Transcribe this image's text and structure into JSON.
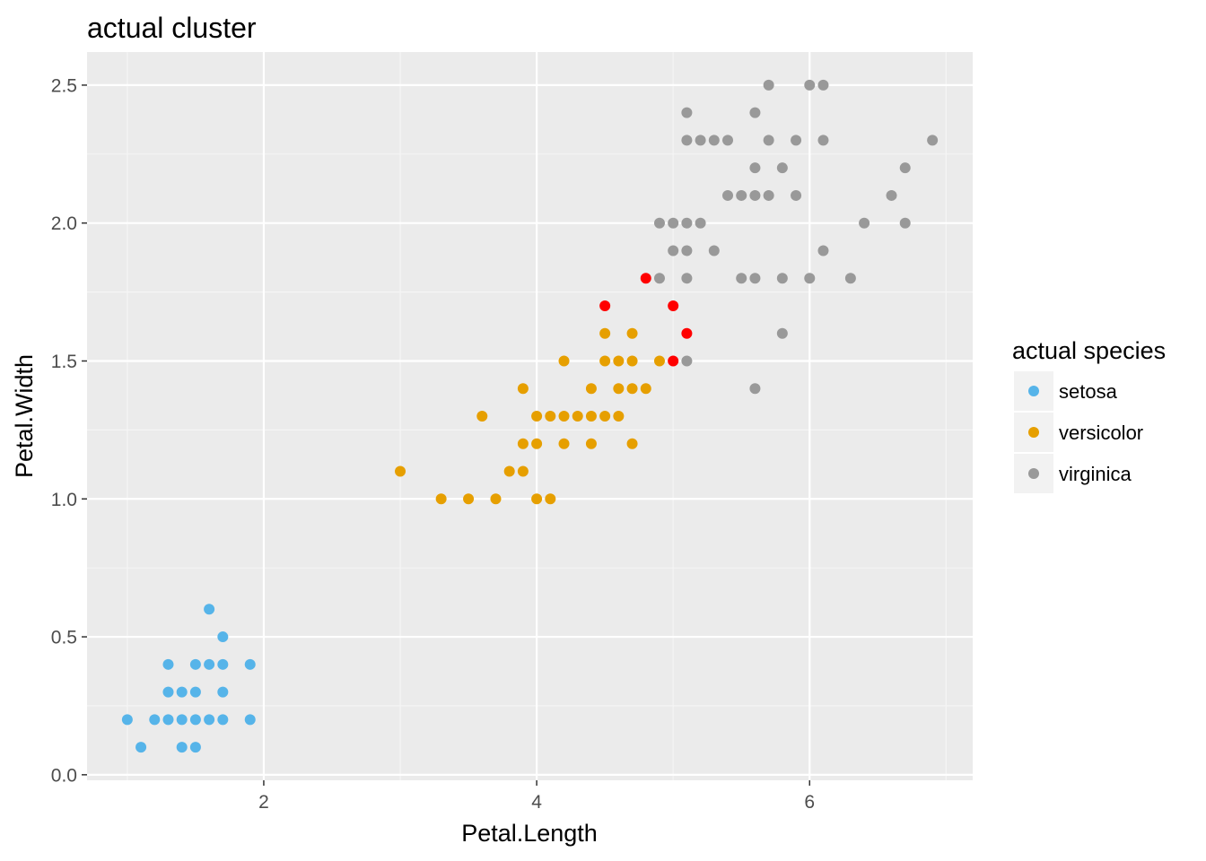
{
  "chart_data": {
    "type": "scatter",
    "title": "actual cluster",
    "xlabel": "Petal.Length",
    "ylabel": "Petal.Width",
    "xlim": [
      0.705,
      7.195
    ],
    "ylim": [
      -0.02,
      2.62
    ],
    "x_ticks": [
      2,
      4,
      6
    ],
    "x_tick_labels": [
      "2",
      "4",
      "6"
    ],
    "y_ticks": [
      0,
      0.5,
      1,
      1.5,
      2,
      2.5
    ],
    "y_tick_labels": [
      "0.0",
      "0.5",
      "1.0",
      "1.5",
      "2.0",
      "2.5"
    ],
    "grid": true,
    "legend": {
      "title": "actual species",
      "placement": "right"
    },
    "series": [
      {
        "name": "setosa",
        "color": "#56B4E9",
        "points": [
          [
            1.0,
            0.2
          ],
          [
            1.1,
            0.1
          ],
          [
            1.2,
            0.2
          ],
          [
            1.3,
            0.2
          ],
          [
            1.3,
            0.3
          ],
          [
            1.3,
            0.4
          ],
          [
            1.4,
            0.1
          ],
          [
            1.4,
            0.2
          ],
          [
            1.4,
            0.3
          ],
          [
            1.5,
            0.1
          ],
          [
            1.5,
            0.2
          ],
          [
            1.5,
            0.3
          ],
          [
            1.5,
            0.4
          ],
          [
            1.6,
            0.2
          ],
          [
            1.6,
            0.4
          ],
          [
            1.6,
            0.6
          ],
          [
            1.7,
            0.2
          ],
          [
            1.7,
            0.3
          ],
          [
            1.7,
            0.4
          ],
          [
            1.7,
            0.5
          ],
          [
            1.9,
            0.2
          ],
          [
            1.9,
            0.4
          ]
        ]
      },
      {
        "name": "versicolor",
        "color": "#E69F00",
        "points": [
          [
            3.0,
            1.1
          ],
          [
            3.3,
            1.0
          ],
          [
            3.5,
            1.0
          ],
          [
            3.6,
            1.3
          ],
          [
            3.7,
            1.0
          ],
          [
            3.8,
            1.1
          ],
          [
            3.9,
            1.1
          ],
          [
            3.9,
            1.2
          ],
          [
            3.9,
            1.4
          ],
          [
            4.0,
            1.0
          ],
          [
            4.0,
            1.2
          ],
          [
            4.0,
            1.3
          ],
          [
            4.1,
            1.0
          ],
          [
            4.1,
            1.3
          ],
          [
            4.2,
            1.2
          ],
          [
            4.2,
            1.3
          ],
          [
            4.2,
            1.5
          ],
          [
            4.3,
            1.3
          ],
          [
            4.4,
            1.2
          ],
          [
            4.4,
            1.3
          ],
          [
            4.4,
            1.4
          ],
          [
            4.5,
            1.3
          ],
          [
            4.5,
            1.5
          ],
          [
            4.5,
            1.6
          ],
          [
            4.6,
            1.3
          ],
          [
            4.6,
            1.4
          ],
          [
            4.6,
            1.5
          ],
          [
            4.7,
            1.2
          ],
          [
            4.7,
            1.4
          ],
          [
            4.7,
            1.5
          ],
          [
            4.7,
            1.6
          ],
          [
            4.8,
            1.4
          ],
          [
            4.9,
            1.5
          ]
        ]
      },
      {
        "name": "virginica",
        "color": "#999999",
        "points": [
          [
            4.9,
            1.8
          ],
          [
            4.9,
            2.0
          ],
          [
            5.0,
            1.9
          ],
          [
            5.0,
            2.0
          ],
          [
            5.1,
            1.5
          ],
          [
            5.1,
            1.8
          ],
          [
            5.1,
            1.9
          ],
          [
            5.1,
            2.0
          ],
          [
            5.1,
            2.3
          ],
          [
            5.1,
            2.4
          ],
          [
            5.2,
            2.0
          ],
          [
            5.2,
            2.3
          ],
          [
            5.3,
            1.9
          ],
          [
            5.3,
            2.3
          ],
          [
            5.4,
            2.1
          ],
          [
            5.4,
            2.3
          ],
          [
            5.5,
            1.8
          ],
          [
            5.5,
            2.1
          ],
          [
            5.6,
            1.4
          ],
          [
            5.6,
            1.8
          ],
          [
            5.6,
            2.1
          ],
          [
            5.6,
            2.2
          ],
          [
            5.6,
            2.4
          ],
          [
            5.7,
            2.1
          ],
          [
            5.7,
            2.3
          ],
          [
            5.7,
            2.5
          ],
          [
            5.8,
            1.6
          ],
          [
            5.8,
            1.8
          ],
          [
            5.8,
            2.2
          ],
          [
            5.9,
            2.1
          ],
          [
            5.9,
            2.3
          ],
          [
            6.0,
            1.8
          ],
          [
            6.0,
            2.5
          ],
          [
            6.1,
            1.9
          ],
          [
            6.1,
            2.3
          ],
          [
            6.1,
            2.5
          ],
          [
            6.3,
            1.8
          ],
          [
            6.4,
            2.0
          ],
          [
            6.6,
            2.1
          ],
          [
            6.7,
            2.0
          ],
          [
            6.7,
            2.2
          ],
          [
            6.9,
            2.3
          ]
        ]
      },
      {
        "name": "",
        "color": "#FF0000",
        "in_legend": false,
        "points": [
          [
            4.5,
            1.7
          ],
          [
            4.8,
            1.8
          ],
          [
            5.0,
            1.5
          ],
          [
            5.0,
            1.7
          ],
          [
            5.1,
            1.6
          ]
        ]
      }
    ]
  }
}
